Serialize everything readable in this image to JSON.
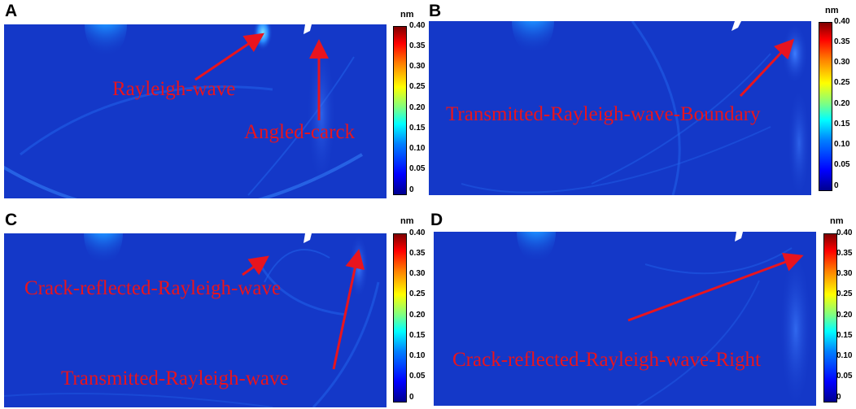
{
  "colorbar": {
    "unit": "nm",
    "ticks": [
      "0.40",
      "0.35",
      "0.30",
      "0.25",
      "0.20",
      "0.15",
      "0.10",
      "0.05",
      "0"
    ]
  },
  "panels": [
    {
      "letter": "A",
      "labels": [
        "Rayleigh-wave",
        "Angled-carck"
      ]
    },
    {
      "letter": "B",
      "labels": [
        "Transmitted-Rayleigh-wave-Boundary"
      ]
    },
    {
      "letter": "C",
      "labels": [
        "Crack-reflected-Rayleigh-wave",
        "Transmitted-Rayleigh-wave"
      ]
    },
    {
      "letter": "D",
      "labels": [
        "Crack-reflected-Rayleigh-wave-Right"
      ]
    }
  ],
  "colors": {
    "field": "#1438c8",
    "annotation": "#e8141e"
  }
}
